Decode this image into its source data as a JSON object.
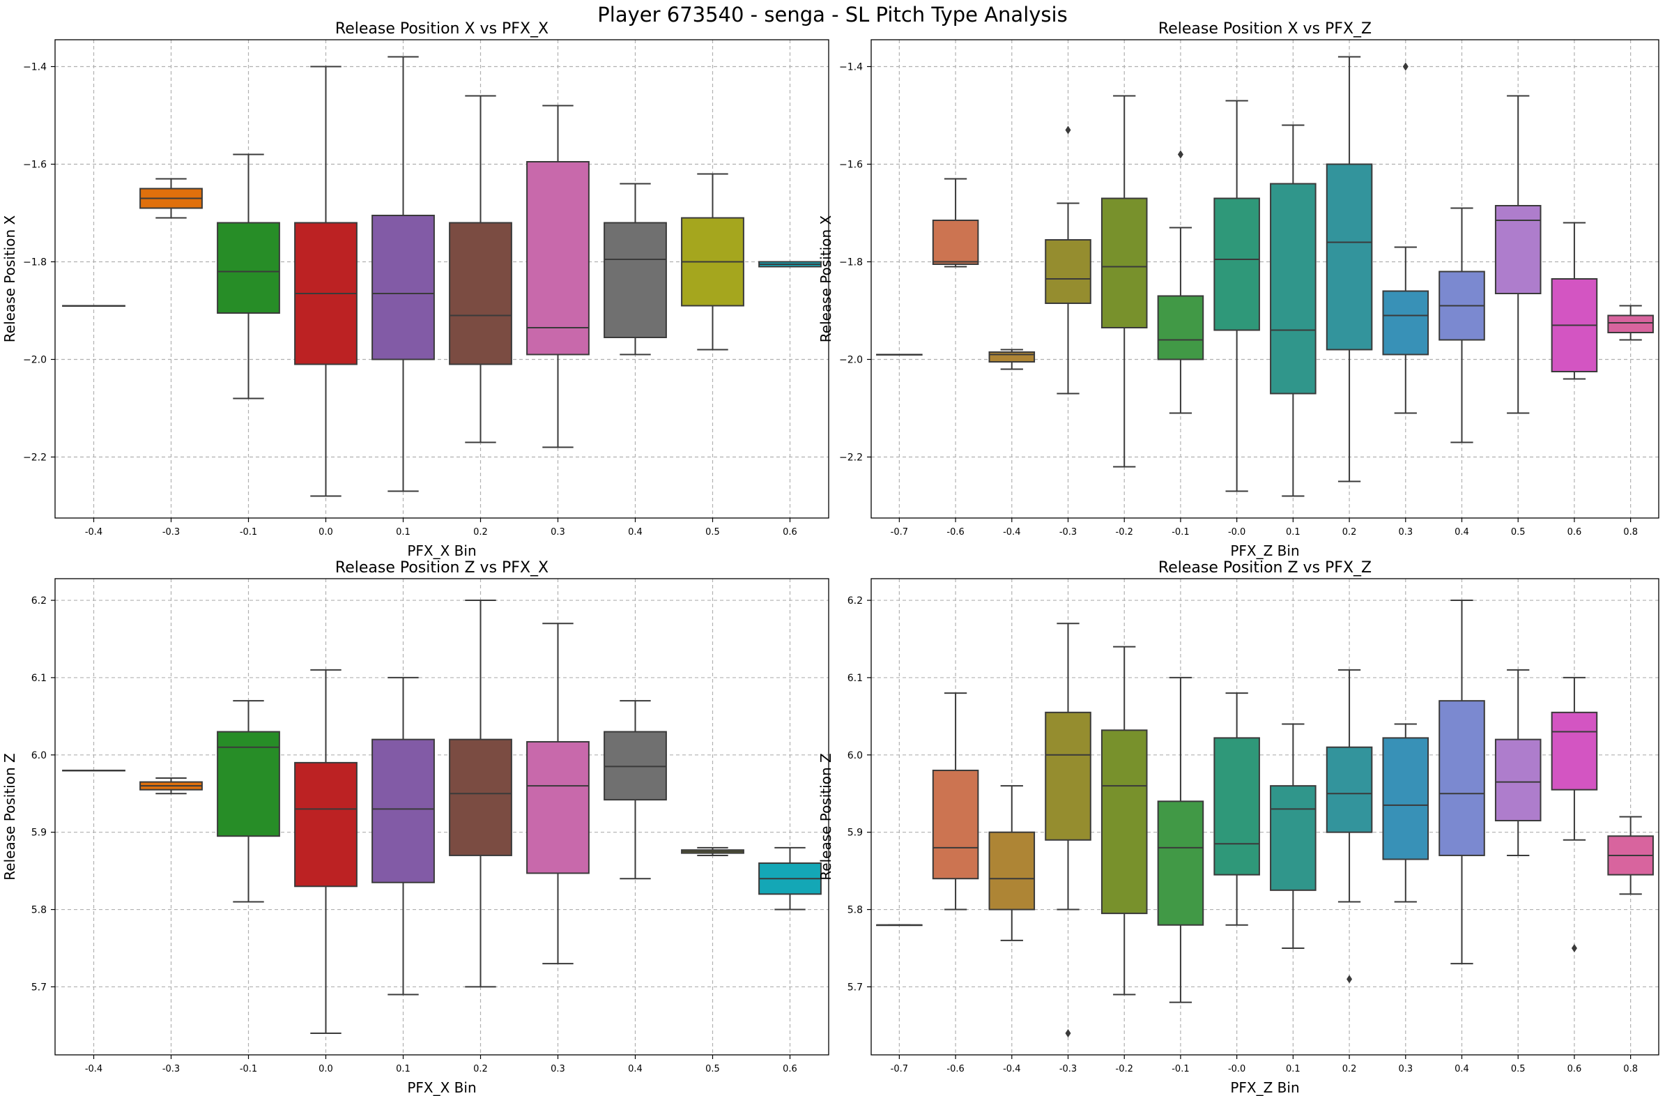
{
  "suptitle": "Player 673540 - senga - SL Pitch Type Analysis",
  "chart_data": [
    {
      "type": "box",
      "title": "Release Position X vs PFX_X",
      "xlabel": "PFX_X Bin",
      "ylabel": "Release Position X",
      "ylim": [
        -2.325,
        -1.345
      ],
      "yticks": [
        -2.2,
        -2.0,
        -1.8,
        -1.6,
        -1.4
      ],
      "grid": true,
      "categories": [
        "-0.4",
        "-0.3",
        "-0.1",
        "0.0",
        "0.1",
        "0.2",
        "0.3",
        "0.4",
        "0.5",
        "0.6"
      ],
      "colors": [
        "#1f77b4",
        "#ff7f0e",
        "#2ca02c",
        "#d62728",
        "#9467bd",
        "#8c564b",
        "#e377c2",
        "#7f7f7f",
        "#bcbd22",
        "#17becf"
      ],
      "boxes": [
        {
          "min": -1.89,
          "q1": -1.89,
          "median": -1.89,
          "q3": -1.89,
          "max": -1.89,
          "outliers": []
        },
        {
          "min": -1.71,
          "q1": -1.69,
          "median": -1.67,
          "q3": -1.65,
          "max": -1.63,
          "outliers": []
        },
        {
          "min": -2.08,
          "q1": -1.905,
          "median": -1.82,
          "q3": -1.72,
          "max": -1.58,
          "outliers": []
        },
        {
          "min": -2.28,
          "q1": -2.01,
          "median": -1.865,
          "q3": -1.72,
          "max": -1.4,
          "outliers": []
        },
        {
          "min": -2.27,
          "q1": -2.0,
          "median": -1.865,
          "q3": -1.705,
          "max": -1.38,
          "outliers": []
        },
        {
          "min": -2.17,
          "q1": -2.01,
          "median": -1.91,
          "q3": -1.72,
          "max": -1.46,
          "outliers": []
        },
        {
          "min": -2.18,
          "q1": -1.99,
          "median": -1.935,
          "q3": -1.595,
          "max": -1.48,
          "outliers": []
        },
        {
          "min": -1.99,
          "q1": -1.955,
          "median": -1.795,
          "q3": -1.72,
          "max": -1.64,
          "outliers": []
        },
        {
          "min": -1.98,
          "q1": -1.89,
          "median": -1.8,
          "q3": -1.71,
          "max": -1.62,
          "outliers": []
        },
        {
          "min": -1.81,
          "q1": -1.81,
          "median": -1.805,
          "q3": -1.8,
          "max": -1.8,
          "outliers": []
        }
      ]
    },
    {
      "type": "box",
      "title": "Release Position X vs PFX_Z",
      "xlabel": "PFX_Z Bin",
      "ylabel": "Release Position X",
      "ylim": [
        -2.325,
        -1.345
      ],
      "yticks": [
        -2.2,
        -2.0,
        -1.8,
        -1.6,
        -1.4
      ],
      "grid": true,
      "categories": [
        "-0.7",
        "-0.6",
        "-0.4",
        "-0.3",
        "-0.2",
        "-0.1",
        "-0.0",
        "0.1",
        "0.2",
        "0.3",
        "0.4",
        "0.5",
        "0.6",
        "0.8"
      ],
      "colors": [
        "#f77189",
        "#e8845c",
        "#c6973c",
        "#a9a035",
        "#88a532",
        "#4aae4f",
        "#35ad8a",
        "#37aa9e",
        "#3aa8b1",
        "#40a5d0",
        "#8c9cec",
        "#c68ee8",
        "#f061dd",
        "#f572b3"
      ],
      "boxes": [
        {
          "min": -1.99,
          "q1": -1.99,
          "median": -1.99,
          "q3": -1.99,
          "max": -1.99,
          "outliers": []
        },
        {
          "min": -1.81,
          "q1": -1.805,
          "median": -1.8,
          "q3": -1.715,
          "max": -1.63,
          "outliers": []
        },
        {
          "min": -2.02,
          "q1": -2.005,
          "median": -1.99,
          "q3": -1.985,
          "max": -1.98,
          "outliers": []
        },
        {
          "min": -2.07,
          "q1": -1.885,
          "median": -1.835,
          "q3": -1.755,
          "max": -1.68,
          "outliers": [
            -1.53
          ]
        },
        {
          "min": -2.22,
          "q1": -1.935,
          "median": -1.81,
          "q3": -1.67,
          "max": -1.46,
          "outliers": []
        },
        {
          "min": -2.11,
          "q1": -2.0,
          "median": -1.96,
          "q3": -1.87,
          "max": -1.73,
          "outliers": [
            -1.58
          ]
        },
        {
          "min": -2.27,
          "q1": -1.94,
          "median": -1.795,
          "q3": -1.67,
          "max": -1.47,
          "outliers": []
        },
        {
          "min": -2.28,
          "q1": -2.07,
          "median": -1.94,
          "q3": -1.64,
          "max": -1.52,
          "outliers": []
        },
        {
          "min": -2.25,
          "q1": -1.98,
          "median": -1.76,
          "q3": -1.6,
          "max": -1.38,
          "outliers": []
        },
        {
          "min": -2.11,
          "q1": -1.99,
          "median": -1.91,
          "q3": -1.86,
          "max": -1.77,
          "outliers": [
            -1.4
          ]
        },
        {
          "min": -2.17,
          "q1": -1.96,
          "median": -1.89,
          "q3": -1.82,
          "max": -1.69,
          "outliers": []
        },
        {
          "min": -2.11,
          "q1": -1.865,
          "median": -1.715,
          "q3": -1.685,
          "max": -1.46,
          "outliers": []
        },
        {
          "min": -2.04,
          "q1": -2.025,
          "median": -1.93,
          "q3": -1.835,
          "max": -1.72,
          "outliers": []
        },
        {
          "min": -1.96,
          "q1": -1.945,
          "median": -1.925,
          "q3": -1.91,
          "max": -1.89,
          "outliers": []
        }
      ]
    },
    {
      "type": "box",
      "title": "Release Position Z vs PFX_X",
      "xlabel": "PFX_X Bin",
      "ylabel": "Release Position Z",
      "ylim": [
        5.612,
        6.228
      ],
      "yticks": [
        5.7,
        5.8,
        5.9,
        6.0,
        6.1,
        6.2
      ],
      "grid": true,
      "categories": [
        "-0.4",
        "-0.3",
        "-0.1",
        "0.0",
        "0.1",
        "0.2",
        "0.3",
        "0.4",
        "0.5",
        "0.6"
      ],
      "colors": [
        "#1f77b4",
        "#ff7f0e",
        "#2ca02c",
        "#d62728",
        "#9467bd",
        "#8c564b",
        "#e377c2",
        "#7f7f7f",
        "#bcbd22",
        "#17becf"
      ],
      "boxes": [
        {
          "min": 5.98,
          "q1": 5.98,
          "median": 5.98,
          "q3": 5.98,
          "max": 5.98,
          "outliers": []
        },
        {
          "min": 5.95,
          "q1": 5.955,
          "median": 5.96,
          "q3": 5.965,
          "max": 5.97,
          "outliers": []
        },
        {
          "min": 5.81,
          "q1": 5.895,
          "median": 6.01,
          "q3": 6.03,
          "max": 6.07,
          "outliers": []
        },
        {
          "min": 5.64,
          "q1": 5.83,
          "median": 5.93,
          "q3": 5.99,
          "max": 6.11,
          "outliers": []
        },
        {
          "min": 5.69,
          "q1": 5.835,
          "median": 5.93,
          "q3": 6.02,
          "max": 6.1,
          "outliers": []
        },
        {
          "min": 5.7,
          "q1": 5.87,
          "median": 5.95,
          "q3": 6.02,
          "max": 6.2,
          "outliers": []
        },
        {
          "min": 5.73,
          "q1": 5.847,
          "median": 5.96,
          "q3": 6.017,
          "max": 6.17,
          "outliers": []
        },
        {
          "min": 5.84,
          "q1": 5.942,
          "median": 5.985,
          "q3": 6.03,
          "max": 6.07,
          "outliers": []
        },
        {
          "min": 5.87,
          "q1": 5.873,
          "median": 5.875,
          "q3": 5.877,
          "max": 5.88,
          "outliers": []
        },
        {
          "min": 5.8,
          "q1": 5.82,
          "median": 5.84,
          "q3": 5.86,
          "max": 5.88,
          "outliers": []
        }
      ]
    },
    {
      "type": "box",
      "title": "Release Position Z vs PFX_Z",
      "xlabel": "PFX_Z Bin",
      "ylabel": "Release Position Z",
      "ylim": [
        5.612,
        6.228
      ],
      "yticks": [
        5.7,
        5.8,
        5.9,
        6.0,
        6.1,
        6.2
      ],
      "grid": true,
      "categories": [
        "-0.7",
        "-0.6",
        "-0.4",
        "-0.3",
        "-0.2",
        "-0.1",
        "-0.0",
        "0.1",
        "0.2",
        "0.3",
        "0.4",
        "0.5",
        "0.6",
        "0.8"
      ],
      "colors": [
        "#f77189",
        "#e8845c",
        "#c6973c",
        "#a9a035",
        "#88a532",
        "#4aae4f",
        "#35ad8a",
        "#37aa9e",
        "#3aa8b1",
        "#40a5d0",
        "#8c9cec",
        "#c68ee8",
        "#f061dd",
        "#f572b3"
      ],
      "boxes": [
        {
          "min": 5.78,
          "q1": 5.78,
          "median": 5.78,
          "q3": 5.78,
          "max": 5.78,
          "outliers": []
        },
        {
          "min": 5.8,
          "q1": 5.84,
          "median": 5.88,
          "q3": 5.98,
          "max": 6.08,
          "outliers": []
        },
        {
          "min": 5.76,
          "q1": 5.8,
          "median": 5.84,
          "q3": 5.9,
          "max": 5.96,
          "outliers": []
        },
        {
          "min": 5.8,
          "q1": 5.89,
          "median": 6.0,
          "q3": 6.055,
          "max": 6.17,
          "outliers": [
            5.64
          ]
        },
        {
          "min": 5.69,
          "q1": 5.795,
          "median": 5.96,
          "q3": 6.032,
          "max": 6.14,
          "outliers": []
        },
        {
          "min": 5.68,
          "q1": 5.78,
          "median": 5.88,
          "q3": 5.94,
          "max": 6.1,
          "outliers": []
        },
        {
          "min": 5.78,
          "q1": 5.845,
          "median": 5.885,
          "q3": 6.022,
          "max": 6.08,
          "outliers": []
        },
        {
          "min": 5.75,
          "q1": 5.825,
          "median": 5.93,
          "q3": 5.96,
          "max": 6.04,
          "outliers": []
        },
        {
          "min": 5.81,
          "q1": 5.9,
          "median": 5.95,
          "q3": 6.01,
          "max": 6.11,
          "outliers": [
            5.71
          ]
        },
        {
          "min": 5.81,
          "q1": 5.865,
          "median": 5.935,
          "q3": 6.022,
          "max": 6.04,
          "outliers": []
        },
        {
          "min": 5.73,
          "q1": 5.87,
          "median": 5.95,
          "q3": 6.07,
          "max": 6.2,
          "outliers": []
        },
        {
          "min": 5.87,
          "q1": 5.915,
          "median": 5.965,
          "q3": 6.02,
          "max": 6.11,
          "outliers": []
        },
        {
          "min": 5.89,
          "q1": 5.955,
          "median": 6.03,
          "q3": 6.055,
          "max": 6.1,
          "outliers": [
            5.75
          ]
        },
        {
          "min": 5.82,
          "q1": 5.845,
          "median": 5.87,
          "q3": 5.895,
          "max": 5.92,
          "outliers": []
        }
      ]
    }
  ]
}
